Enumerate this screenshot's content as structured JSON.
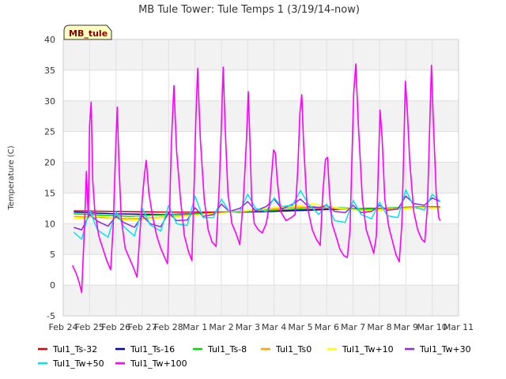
{
  "chart_data": {
    "type": "line",
    "title": "MB Tule Tower: Tule Temps 1 (3/19/14-now)",
    "ylabel": "Temperature (C)",
    "xlabel": "",
    "badge": "MB_tule",
    "ylim": [
      -5,
      40
    ],
    "yticks": [
      -5,
      0,
      5,
      10,
      15,
      20,
      25,
      30,
      35,
      40
    ],
    "xlim": [
      0,
      15
    ],
    "xticks": [
      0,
      1,
      2,
      3,
      4,
      5,
      6,
      7,
      8,
      9,
      10,
      11,
      12,
      13,
      14,
      15
    ],
    "xtick_labels": [
      "Feb 24",
      "Feb 25",
      "Feb 26",
      "Feb 27",
      "Feb 28",
      "Mar 1",
      "Mar 2",
      "Mar 3",
      "Mar 4",
      "Mar 5",
      "Mar 6",
      "Mar 7",
      "Mar 8",
      "Mar 9",
      "Mar 10",
      "Mar 11"
    ],
    "grid": true,
    "band_shading": true,
    "legend_position": "bottom",
    "series": [
      {
        "name": "Tul1_Ts-32",
        "color": "#dd0000",
        "x": [
          0.4,
          2,
          4,
          6,
          8,
          10,
          12,
          14.3
        ],
        "y": [
          12.1,
          12.0,
          11.9,
          11.9,
          12.1,
          12.4,
          12.5,
          12.6
        ]
      },
      {
        "name": "Tul1_Ts-16",
        "color": "#0000bb",
        "x": [
          0.4,
          2,
          4,
          6,
          8,
          10,
          12,
          14.3
        ],
        "y": [
          11.9,
          11.6,
          11.5,
          11.8,
          12.0,
          12.3,
          12.5,
          12.6
        ]
      },
      {
        "name": "Tul1_Ts-8",
        "color": "#00dd00",
        "x": [
          0.4,
          1.5,
          2.5,
          3.5,
          4.5,
          5.5,
          6.5,
          7.5,
          8.5,
          9.5,
          10.5,
          11.5,
          12.5,
          13.5,
          14.3
        ],
        "y": [
          11.6,
          11.4,
          11.2,
          11.4,
          11.5,
          11.7,
          11.9,
          12.1,
          12.3,
          12.6,
          12.6,
          12.4,
          12.6,
          12.8,
          12.8
        ]
      },
      {
        "name": "Tul1_Ts0",
        "color": "#ffa500",
        "x": [
          0.4,
          1.5,
          2.5,
          3.5,
          4.5,
          5.5,
          6.5,
          7.5,
          8.5,
          9.5,
          10.5,
          11.5,
          12.5,
          13.5,
          14.3
        ],
        "y": [
          11.2,
          11.0,
          10.8,
          11.0,
          11.3,
          11.6,
          11.9,
          12.2,
          12.6,
          12.8,
          12.4,
          12.2,
          12.5,
          12.7,
          12.6
        ]
      },
      {
        "name": "Tul1_Tw+10",
        "color": "#ffff00",
        "x": [
          0.4,
          1.5,
          2.5,
          3.5,
          4.5,
          5.5,
          6.5,
          7.5,
          8.5,
          9.5,
          10.5,
          11.5,
          12.5,
          13.5,
          14.3
        ],
        "y": [
          10.8,
          11.2,
          10.5,
          10.9,
          11.2,
          11.6,
          11.9,
          12.4,
          12.8,
          13.2,
          12.5,
          12.1,
          12.3,
          12.6,
          12.5
        ]
      },
      {
        "name": "Tul1_Tw+30",
        "color": "#8a2be2",
        "x": [
          0.4,
          0.7,
          1.0,
          1.3,
          1.7,
          2.0,
          2.3,
          2.7,
          3.0,
          3.3,
          3.7,
          4.0,
          4.3,
          4.7,
          5.0,
          5.3,
          5.7,
          6.0,
          6.3,
          6.7,
          7.0,
          7.3,
          7.7,
          8.0,
          8.3,
          8.7,
          9.0,
          9.3,
          9.7,
          10.0,
          10.3,
          10.7,
          11.0,
          11.3,
          11.7,
          12.0,
          12.3,
          12.7,
          13.0,
          13.3,
          13.7,
          14.0,
          14.3
        ],
        "y": [
          9.4,
          9.0,
          11.5,
          10.4,
          9.6,
          11.2,
          10.2,
          9.4,
          11.3,
          10.0,
          9.5,
          11.8,
          10.5,
          10.6,
          12.6,
          11.2,
          11.5,
          13.2,
          12.0,
          12.5,
          13.6,
          12.1,
          12.8,
          14.0,
          12.4,
          13.2,
          14.0,
          12.8,
          12.6,
          13.0,
          12.0,
          11.8,
          13.0,
          11.8,
          12.0,
          13.0,
          12.2,
          12.4,
          14.5,
          13.3,
          13.0,
          14.2,
          13.6
        ]
      },
      {
        "name": "Tul1_Tw+50",
        "color": "#00e5ee",
        "x": [
          0.4,
          0.7,
          1.0,
          1.3,
          1.7,
          2.0,
          2.3,
          2.7,
          3.0,
          3.3,
          3.7,
          4.0,
          4.3,
          4.7,
          5.0,
          5.3,
          5.7,
          6.0,
          6.3,
          6.7,
          7.0,
          7.3,
          7.7,
          8.0,
          8.3,
          8.7,
          9.0,
          9.3,
          9.7,
          10.0,
          10.3,
          10.7,
          11.0,
          11.3,
          11.7,
          12.0,
          12.3,
          12.7,
          13.0,
          13.3,
          13.7,
          14.0,
          14.3
        ],
        "y": [
          8.6,
          7.5,
          12.2,
          9.0,
          7.8,
          12.0,
          9.5,
          8.0,
          12.5,
          9.8,
          8.8,
          13.0,
          10.0,
          9.7,
          14.5,
          11.0,
          11.0,
          14.0,
          12.0,
          12.0,
          14.8,
          12.5,
          12.0,
          14.2,
          12.8,
          13.0,
          15.4,
          13.2,
          11.5,
          13.2,
          10.5,
          10.2,
          13.8,
          11.5,
          10.8,
          13.5,
          11.3,
          11.0,
          15.5,
          12.8,
          12.2,
          14.8,
          13.6
        ]
      },
      {
        "name": "Tul1_Tw+100",
        "color": "#ff00ff",
        "x": [
          0.35,
          0.5,
          0.6,
          0.7,
          0.8,
          0.88,
          0.95,
          1.0,
          1.06,
          1.12,
          1.2,
          1.35,
          1.5,
          1.65,
          1.8,
          1.9,
          1.98,
          2.05,
          2.12,
          2.2,
          2.35,
          2.5,
          2.65,
          2.8,
          2.9,
          3.0,
          3.08,
          3.15,
          3.25,
          3.4,
          3.55,
          3.7,
          3.85,
          3.95,
          4.03,
          4.1,
          4.2,
          4.3,
          4.45,
          4.6,
          4.75,
          4.88,
          4.97,
          5.03,
          5.1,
          5.2,
          5.35,
          5.5,
          5.65,
          5.8,
          5.92,
          6.0,
          6.07,
          6.15,
          6.25,
          6.4,
          6.55,
          6.7,
          6.85,
          6.95,
          7.02,
          7.08,
          7.15,
          7.25,
          7.4,
          7.55,
          7.7,
          7.82,
          7.9,
          7.98,
          8.05,
          8.12,
          8.25,
          8.45,
          8.65,
          8.8,
          8.9,
          8.98,
          9.05,
          9.12,
          9.25,
          9.45,
          9.6,
          9.75,
          9.85,
          9.95,
          10.03,
          10.1,
          10.2,
          10.35,
          10.5,
          10.65,
          10.78,
          10.88,
          10.95,
          11.02,
          11.1,
          11.2,
          11.35,
          11.5,
          11.65,
          11.78,
          11.88,
          11.95,
          12.02,
          12.1,
          12.2,
          12.35,
          12.5,
          12.62,
          12.75,
          12.85,
          12.92,
          12.98,
          13.05,
          13.15,
          13.3,
          13.45,
          13.6,
          13.72,
          13.82,
          13.9,
          13.97,
          14.05,
          14.15,
          14.25,
          14.3
        ],
        "y": [
          3.2,
          1.8,
          0.5,
          -1.2,
          9.0,
          18.5,
          11.0,
          26.0,
          29.8,
          17.0,
          12.0,
          8.0,
          6.0,
          4.0,
          2.5,
          10.0,
          21.0,
          29.0,
          19.0,
          11.0,
          6.0,
          4.5,
          3.0,
          1.3,
          8.0,
          14.0,
          18.0,
          20.3,
          15.0,
          11.0,
          8.0,
          6.0,
          4.5,
          3.5,
          11.0,
          23.0,
          32.5,
          22.0,
          14.0,
          8.0,
          5.5,
          4.0,
          17.0,
          27.0,
          35.3,
          24.0,
          14.0,
          9.0,
          7.0,
          6.3,
          16.0,
          26.0,
          35.5,
          25.0,
          15.0,
          10.0,
          8.5,
          6.6,
          15.0,
          23.5,
          31.5,
          24.0,
          14.0,
          10.0,
          9.0,
          8.5,
          10.0,
          13.0,
          17.5,
          22.0,
          21.5,
          17.0,
          12.0,
          10.5,
          11.0,
          11.5,
          19.0,
          28.0,
          31.0,
          23.0,
          13.0,
          9.0,
          7.5,
          6.5,
          15.0,
          20.5,
          20.8,
          15.0,
          10.0,
          8.0,
          5.8,
          4.8,
          4.5,
          9.0,
          20.0,
          31.0,
          36.0,
          26.0,
          14.0,
          9.0,
          7.0,
          5.2,
          8.0,
          18.0,
          28.5,
          24.0,
          14.0,
          9.5,
          7.0,
          5.0,
          3.8,
          10.0,
          22.0,
          33.2,
          29.0,
          20.0,
          12.0,
          9.0,
          7.5,
          7.0,
          13.0,
          25.0,
          35.8,
          26.0,
          15.0,
          11.0,
          10.5
        ]
      }
    ]
  }
}
